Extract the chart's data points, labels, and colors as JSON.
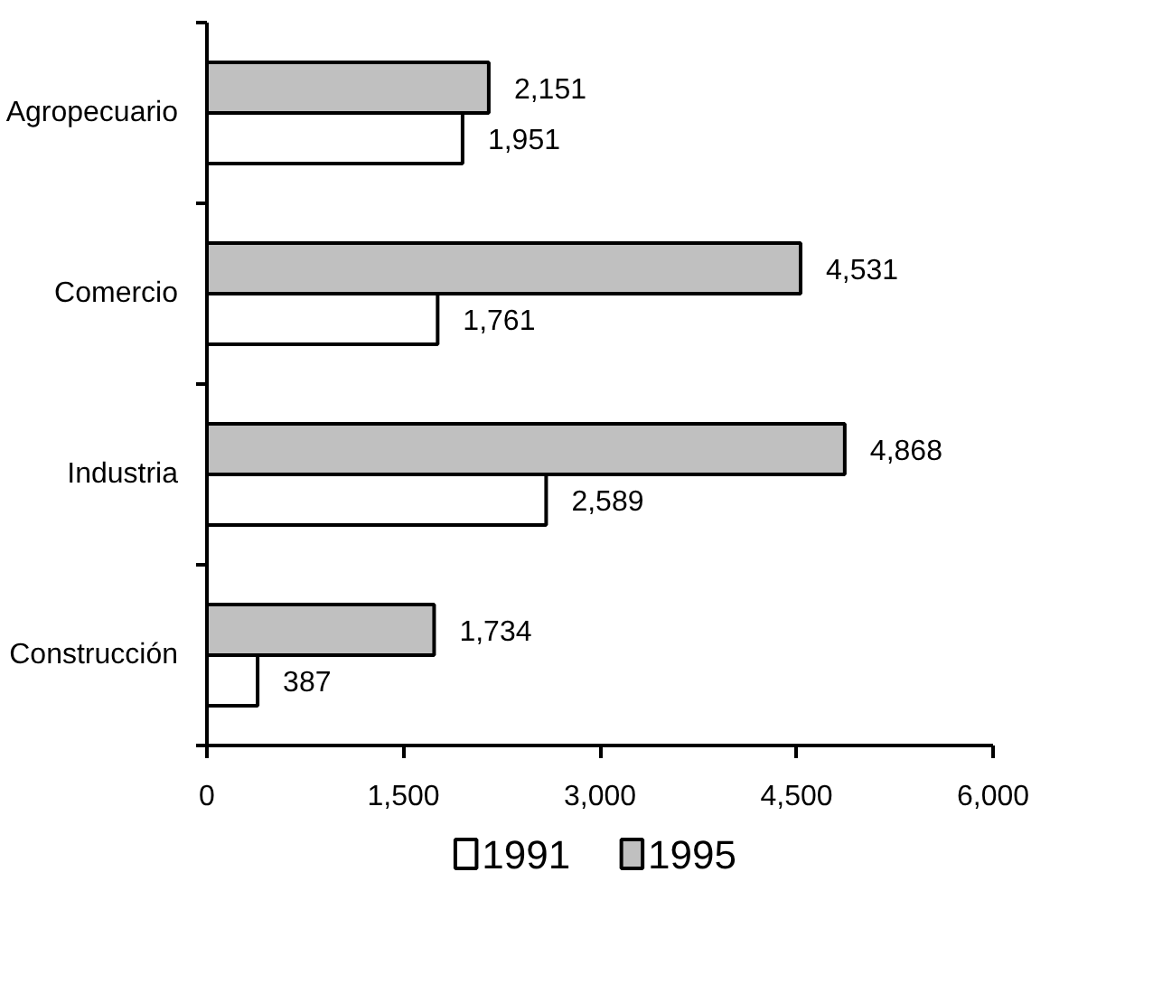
{
  "chart_data": {
    "type": "bar",
    "orientation": "horizontal",
    "categories": [
      "Agropecuario",
      "Comercio",
      "Industria",
      "Construcción"
    ],
    "series": [
      {
        "name": "1991",
        "color": "#ffffff",
        "values": [
          1951,
          1761,
          2589,
          387
        ],
        "value_labels": [
          "1,951",
          "1,761",
          "2,589",
          "387"
        ]
      },
      {
        "name": "1995",
        "color": "#c0c0c0",
        "values": [
          2151,
          4531,
          4868,
          1734
        ],
        "value_labels": [
          "2,151",
          "4,531",
          "4,868",
          "1,734"
        ]
      }
    ],
    "xlim": [
      0,
      6000
    ],
    "xticks": [
      0,
      {
        "value": 1500,
        "label": "1,500"
      },
      {
        "value": 3000,
        "label": "3,000"
      },
      {
        "value": 4500,
        "label": "4,500"
      },
      {
        "value": 6000,
        "label": "6,000"
      }
    ],
    "grid": false,
    "legend": "bottom"
  }
}
